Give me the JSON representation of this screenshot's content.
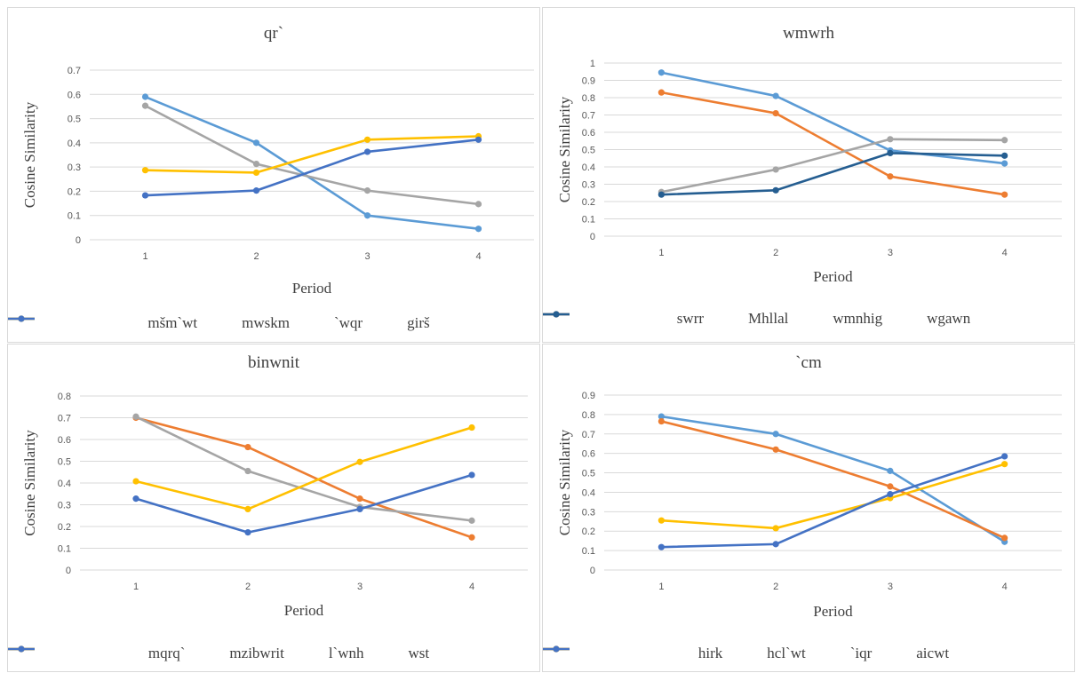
{
  "chart_data": [
    {
      "type": "line",
      "title": "qr`",
      "xlabel": "Period",
      "ylabel": "Cosine Similarity",
      "x": [
        1,
        2,
        3,
        4
      ],
      "ylim": [
        0,
        0.7
      ],
      "yticks": [
        0,
        0.1,
        0.2,
        0.3,
        0.4,
        0.5,
        0.6,
        0.7
      ],
      "grid": true,
      "legend": "bottom",
      "series": [
        {
          "name": "mšm`wt",
          "color": "#5B9BD5",
          "values": [
            0.59,
            0.4,
            0.1,
            0.045
          ]
        },
        {
          "name": "mwskm",
          "color": "#A5A5A5",
          "values": [
            0.553,
            0.313,
            0.203,
            0.147
          ]
        },
        {
          "name": "`wqr",
          "color": "#FFC000",
          "values": [
            0.287,
            0.277,
            0.413,
            0.427
          ]
        },
        {
          "name": "girš",
          "color": "#4472C4",
          "values": [
            0.183,
            0.203,
            0.363,
            0.413
          ]
        }
      ]
    },
    {
      "type": "line",
      "title": "wmwrh",
      "xlabel": "Period",
      "ylabel": "Cosine Similarity",
      "x": [
        1,
        2,
        3,
        4
      ],
      "ylim": [
        0,
        1
      ],
      "yticks": [
        0,
        0.1,
        0.2,
        0.3,
        0.4,
        0.5,
        0.6,
        0.7,
        0.8,
        0.9,
        1
      ],
      "grid": true,
      "legend": "bottom",
      "series": [
        {
          "name": "swrr",
          "color": "#5B9BD5",
          "values": [
            0.945,
            0.81,
            0.495,
            0.42
          ]
        },
        {
          "name": "Mhllal",
          "color": "#ED7D31",
          "values": [
            0.83,
            0.71,
            0.345,
            0.24
          ]
        },
        {
          "name": "wmnhig",
          "color": "#A5A5A5",
          "values": [
            0.255,
            0.385,
            0.56,
            0.555
          ]
        },
        {
          "name": "wgawn",
          "color": "#255E91",
          "values": [
            0.24,
            0.265,
            0.48,
            0.465
          ]
        }
      ]
    },
    {
      "type": "line",
      "title": "binwnit",
      "xlabel": "Period",
      "ylabel": "Cosine Similarity",
      "x": [
        1,
        2,
        3,
        4
      ],
      "ylim": [
        0,
        0.8
      ],
      "yticks": [
        0,
        0.1,
        0.2,
        0.3,
        0.4,
        0.5,
        0.6,
        0.7,
        0.8
      ],
      "grid": true,
      "legend": "bottom",
      "series": [
        {
          "name": "mqrq`",
          "color": "#ED7D31",
          "values": [
            0.7,
            0.565,
            0.328,
            0.15
          ]
        },
        {
          "name": "mzibwrit",
          "color": "#A5A5A5",
          "values": [
            0.705,
            0.455,
            0.29,
            0.227
          ]
        },
        {
          "name": "l`wnh",
          "color": "#FFC000",
          "values": [
            0.408,
            0.28,
            0.497,
            0.655
          ]
        },
        {
          "name": "wst",
          "color": "#4472C4",
          "values": [
            0.328,
            0.173,
            0.28,
            0.437
          ]
        }
      ]
    },
    {
      "type": "line",
      "title": "`cm",
      "xlabel": "Period",
      "ylabel": "Cosine Similarity",
      "x": [
        1,
        2,
        3,
        4
      ],
      "ylim": [
        0,
        0.9
      ],
      "yticks": [
        0,
        0.1,
        0.2,
        0.3,
        0.4,
        0.5,
        0.6,
        0.7,
        0.8,
        0.9
      ],
      "grid": true,
      "legend": "bottom",
      "series": [
        {
          "name": "hirk",
          "color": "#5B9BD5",
          "values": [
            0.79,
            0.7,
            0.51,
            0.145
          ]
        },
        {
          "name": "hcl`wt",
          "color": "#ED7D31",
          "values": [
            0.765,
            0.62,
            0.43,
            0.165
          ]
        },
        {
          "name": "`iqr",
          "color": "#FFC000",
          "values": [
            0.255,
            0.215,
            0.37,
            0.545
          ]
        },
        {
          "name": "aicwt",
          "color": "#4472C4",
          "values": [
            0.118,
            0.133,
            0.39,
            0.585
          ]
        }
      ]
    }
  ]
}
